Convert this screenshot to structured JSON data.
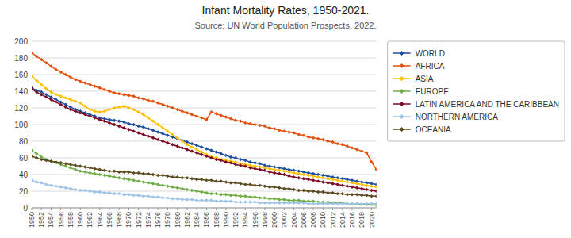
{
  "chart_data": {
    "type": "line",
    "title": "Infant Mortality Rates, 1950-2021.",
    "subtitle": "Source: UN World Population Prospects, 2022.",
    "x": [
      1950,
      1951,
      1952,
      1953,
      1954,
      1955,
      1956,
      1957,
      1958,
      1959,
      1960,
      1961,
      1962,
      1963,
      1964,
      1965,
      1966,
      1967,
      1968,
      1969,
      1970,
      1971,
      1972,
      1973,
      1974,
      1975,
      1976,
      1977,
      1978,
      1979,
      1980,
      1981,
      1982,
      1983,
      1984,
      1985,
      1986,
      1987,
      1988,
      1989,
      1990,
      1991,
      1992,
      1993,
      1994,
      1995,
      1996,
      1997,
      1998,
      1999,
      2000,
      2001,
      2002,
      2003,
      2004,
      2005,
      2006,
      2007,
      2008,
      2009,
      2010,
      2011,
      2012,
      2013,
      2014,
      2015,
      2016,
      2017,
      2018,
      2019,
      2020,
      2021
    ],
    "series": [
      {
        "name": "WORLD",
        "color": "#1f4e9e",
        "values": [
          144,
          141,
          139,
          136,
          133,
          130,
          127,
          124,
          121,
          118,
          116,
          114,
          112,
          110,
          108,
          107,
          106,
          105,
          104,
          103,
          101,
          100,
          98,
          97,
          95,
          93,
          91,
          89,
          87,
          85,
          83,
          81,
          79,
          77,
          75,
          73,
          71,
          69,
          67,
          65,
          63,
          61,
          60,
          58,
          57,
          55,
          54,
          53,
          51,
          50,
          49,
          48,
          47,
          46,
          45,
          44,
          43,
          42,
          41,
          40,
          39,
          38,
          37,
          36,
          35,
          34,
          33,
          32,
          31,
          30,
          29,
          28
        ]
      },
      {
        "name": "AFRICA",
        "color": "#e2510e",
        "values": [
          186,
          182,
          178,
          174,
          170,
          166,
          163,
          160,
          157,
          154,
          152,
          150,
          148,
          146,
          144,
          142,
          140,
          138,
          137,
          136,
          135,
          134,
          132,
          131,
          129,
          128,
          126,
          124,
          122,
          120,
          118,
          116,
          114,
          112,
          110,
          108,
          106,
          115,
          113,
          111,
          109,
          107,
          105,
          104,
          102,
          101,
          100,
          99,
          98,
          96,
          95,
          93,
          92,
          91,
          90,
          88,
          87,
          85,
          84,
          83,
          82,
          80,
          79,
          77,
          76,
          74,
          72,
          70,
          68,
          66,
          55,
          46
        ]
      },
      {
        "name": "ASIA",
        "color": "#ffc000",
        "values": [
          158,
          153,
          148,
          143,
          139,
          136,
          134,
          132,
          130,
          128,
          126,
          122,
          118,
          116,
          115,
          116,
          118,
          120,
          121,
          122,
          120,
          118,
          115,
          112,
          108,
          104,
          100,
          96,
          92,
          88,
          84,
          80,
          76,
          73,
          70,
          67,
          64,
          61,
          60,
          58,
          57,
          56,
          55,
          53,
          52,
          51,
          50,
          49,
          48,
          47,
          46,
          45,
          44,
          43,
          42,
          41,
          40,
          39,
          38,
          37,
          36,
          35,
          34,
          33,
          32,
          31,
          30,
          29,
          28,
          27,
          26,
          25
        ]
      },
      {
        "name": "EUROPE",
        "color": "#70ad47",
        "values": [
          69,
          65,
          61,
          58,
          56,
          54,
          52,
          50,
          48,
          46,
          44,
          43,
          42,
          41,
          40,
          39,
          38,
          37,
          36,
          35,
          34,
          33,
          32,
          31,
          30,
          29,
          28,
          27,
          26,
          25,
          24,
          23,
          22,
          21,
          20,
          19,
          18,
          17,
          17,
          16,
          16,
          15,
          15,
          14,
          14,
          13,
          13,
          12,
          12,
          11,
          11,
          10,
          10,
          9,
          9,
          9,
          8,
          8,
          8,
          7,
          7,
          7,
          6,
          6,
          6,
          5,
          5,
          5,
          4,
          4,
          4,
          3
        ]
      },
      {
        "name": "LATIN AMERICA AND THE CARIBBEAN",
        "color": "#7b0a25",
        "values": [
          143,
          139,
          136,
          133,
          130,
          127,
          124,
          121,
          118,
          116,
          114,
          112,
          110,
          108,
          106,
          104,
          102,
          100,
          98,
          96,
          94,
          92,
          90,
          88,
          86,
          84,
          82,
          80,
          78,
          76,
          74,
          72,
          70,
          68,
          66,
          64,
          62,
          60,
          58,
          57,
          55,
          54,
          52,
          51,
          50,
          48,
          47,
          46,
          45,
          43,
          42,
          41,
          40,
          38,
          37,
          36,
          35,
          34,
          33,
          32,
          31,
          30,
          29,
          28,
          27,
          26,
          25,
          24,
          23,
          22,
          21,
          20
        ]
      },
      {
        "name": "NORTHERN AMERICA",
        "color": "#9dc3e6",
        "values": [
          33,
          31,
          30,
          28,
          27,
          26,
          25,
          24,
          23,
          22,
          21,
          21,
          20,
          19,
          19,
          18,
          18,
          17,
          17,
          16,
          16,
          15,
          15,
          14,
          14,
          13,
          13,
          12,
          12,
          11,
          11,
          10,
          10,
          10,
          9,
          9,
          9,
          9,
          8,
          8,
          8,
          8,
          7,
          7,
          7,
          7,
          7,
          6,
          6,
          6,
          6,
          6,
          6,
          6,
          6,
          6,
          6,
          5,
          5,
          5,
          5,
          5,
          5,
          5,
          5,
          5,
          5,
          5,
          5,
          5,
          5,
          5
        ]
      },
      {
        "name": "OCEANIA",
        "color": "#5a4a1e",
        "values": [
          62,
          60,
          58,
          57,
          56,
          55,
          54,
          53,
          52,
          51,
          50,
          49,
          48,
          47,
          46,
          45,
          44,
          44,
          43,
          43,
          43,
          42,
          42,
          41,
          41,
          40,
          39,
          39,
          38,
          37,
          37,
          36,
          36,
          35,
          34,
          34,
          33,
          33,
          32,
          32,
          31,
          30,
          30,
          29,
          28,
          28,
          27,
          27,
          26,
          25,
          25,
          24,
          23,
          23,
          22,
          21,
          21,
          20,
          20,
          19,
          19,
          18,
          18,
          17,
          17,
          16,
          16,
          16,
          15,
          15,
          14,
          14
        ]
      }
    ],
    "xlim": [
      1950,
      2021
    ],
    "xticks": [
      1950,
      1952,
      1954,
      1956,
      1958,
      1960,
      1962,
      1964,
      1966,
      1968,
      1970,
      1972,
      1974,
      1976,
      1978,
      1980,
      1982,
      1984,
      1986,
      1988,
      1990,
      1992,
      1994,
      1996,
      1998,
      2000,
      2002,
      2004,
      2006,
      2008,
      2010,
      2012,
      2014,
      2016,
      2018,
      2020
    ],
    "ylim": [
      0,
      200
    ],
    "yticks": [
      0,
      20,
      40,
      60,
      80,
      100,
      120,
      140,
      160,
      180,
      200
    ],
    "grid": true,
    "legend": "right",
    "marker": "diamond"
  }
}
